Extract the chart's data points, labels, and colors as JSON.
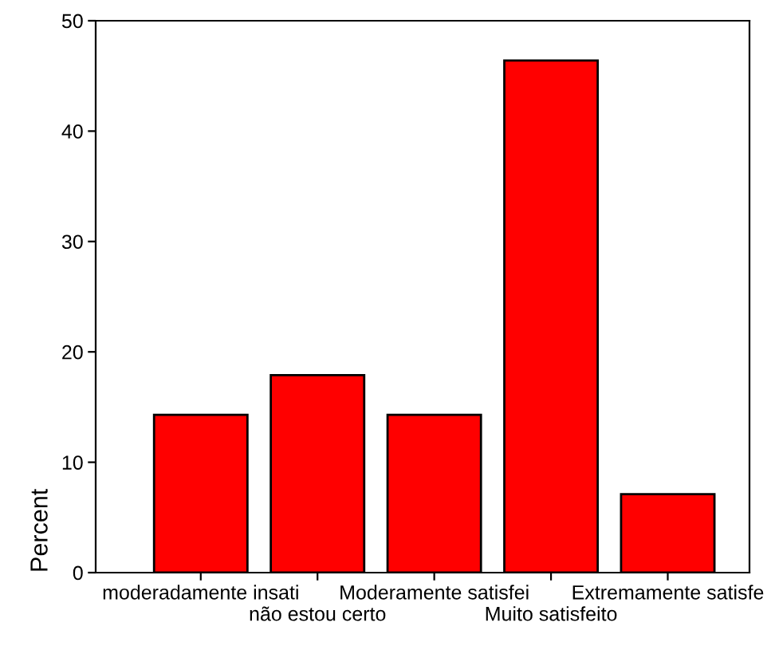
{
  "chart_data": {
    "type": "bar",
    "ylabel": "Percent",
    "categories": [
      "moderadamente insati",
      "não estou certo",
      "Moderamente satisfei",
      "Muito satisfeito",
      "Extremamente satisfe"
    ],
    "values": [
      14.3,
      17.9,
      14.3,
      46.4,
      7.1
    ],
    "color": "#ff0000",
    "ylim": [
      0,
      50
    ],
    "yticks": [
      0,
      10,
      20,
      30,
      40,
      50
    ],
    "grid": false
  }
}
